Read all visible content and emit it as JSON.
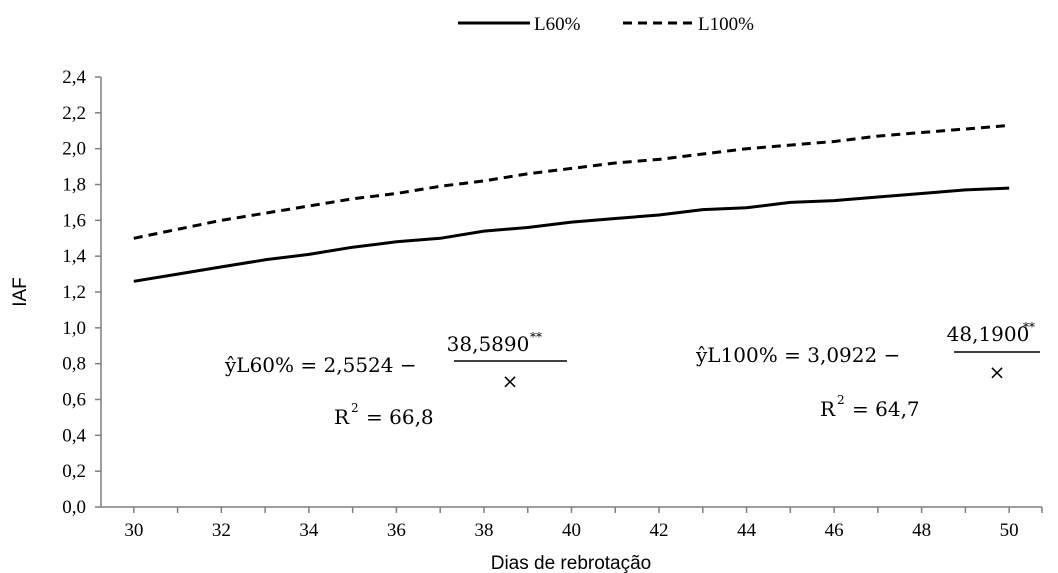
{
  "chart_data": {
    "type": "line",
    "title": "",
    "xlabel": "Dias de rebrotação",
    "ylabel": "IAF",
    "xlim": [
      29.25,
      50.75
    ],
    "ylim": [
      0,
      2.4
    ],
    "x_ticks": [
      "30",
      "32",
      "34",
      "36",
      "38",
      "40",
      "42",
      "44",
      "46",
      "48",
      "50"
    ],
    "y_ticks": [
      "0,0",
      "0,2",
      "0,4",
      "0,6",
      "0,8",
      "1,0",
      "1,2",
      "1,4",
      "1,6",
      "1,8",
      "2,0",
      "2,2",
      "2,4"
    ],
    "y_tick_values": [
      0,
      0.2,
      0.4,
      0.6,
      0.8,
      1.0,
      1.2,
      1.4,
      1.6,
      1.8,
      2.0,
      2.2,
      2.4
    ],
    "x_tick_values": [
      30,
      32,
      34,
      36,
      38,
      40,
      42,
      44,
      46,
      48,
      50
    ],
    "x": [
      30,
      31,
      32,
      33,
      34,
      35,
      36,
      37,
      38,
      39,
      40,
      41,
      42,
      43,
      44,
      45,
      46,
      47,
      48,
      49,
      50
    ],
    "series": [
      {
        "name": "L60%",
        "style": "solid",
        "color": "#000000",
        "values": [
          1.26,
          1.3,
          1.34,
          1.38,
          1.41,
          1.45,
          1.48,
          1.5,
          1.54,
          1.56,
          1.59,
          1.61,
          1.63,
          1.66,
          1.67,
          1.7,
          1.71,
          1.73,
          1.75,
          1.77,
          1.78
        ]
      },
      {
        "name": "L100%",
        "style": "dashed",
        "color": "#000000",
        "values": [
          1.5,
          1.55,
          1.6,
          1.64,
          1.68,
          1.72,
          1.75,
          1.79,
          1.82,
          1.86,
          1.89,
          1.92,
          1.94,
          1.97,
          2.0,
          2.02,
          2.04,
          2.07,
          2.09,
          2.11,
          2.13
        ]
      }
    ],
    "legend_position": "top-center",
    "grid": false,
    "annotations": [
      {
        "id": "l60",
        "lhs": "ŷL60% = 2,5524 −",
        "numerator": "38,5890",
        "sup": "**",
        "denominator": "×",
        "r2_prefix": "R",
        "r2_exp": "2",
        "r2_value": "= 66,8"
      },
      {
        "id": "l100",
        "lhs": "ŷL100% = 3,0922 −",
        "numerator": "48,1900",
        "sup": "**",
        "denominator": "×",
        "r2_prefix": "R",
        "r2_exp": "2",
        "r2_value": "= 64,7"
      }
    ]
  }
}
